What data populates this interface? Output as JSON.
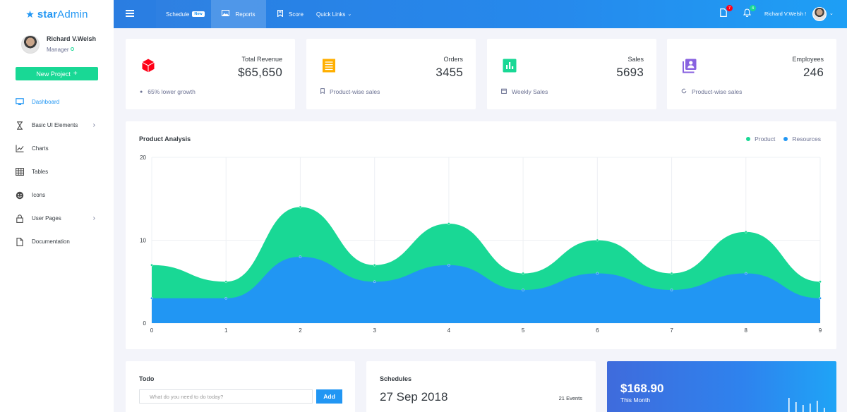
{
  "brand": {
    "name_bold": "star",
    "name_light": "Admin"
  },
  "profile": {
    "name": "Richard V.Welsh",
    "role": "Manager"
  },
  "sidebar": {
    "new_project_label": "New Project",
    "items": [
      {
        "label": "Dashboard",
        "icon": "monitor-icon",
        "active": true
      },
      {
        "label": "Basic UI Elements",
        "icon": "hourglass-icon",
        "has_submenu": true
      },
      {
        "label": "Charts",
        "icon": "chart-line-icon"
      },
      {
        "label": "Tables",
        "icon": "table-icon"
      },
      {
        "label": "Icons",
        "icon": "emoticon-icon"
      },
      {
        "label": "User Pages",
        "icon": "lock-icon",
        "has_submenu": true
      },
      {
        "label": "Documentation",
        "icon": "file-icon"
      }
    ]
  },
  "topbar": {
    "schedule_label": "Schedule",
    "schedule_badge": "New",
    "reports_label": "Reports",
    "score_label": "Score",
    "quick_links_label": "Quick Links",
    "messages_count": "7",
    "notifications_count": "4",
    "user_name": "Richard V.Welsh !"
  },
  "stats": [
    {
      "label": "Total Revenue",
      "value": "$65,650",
      "footer": "65% lower growth",
      "icon": "cube-icon",
      "color": "#ff0017"
    },
    {
      "label": "Orders",
      "value": "3455",
      "footer": "Product-wise sales",
      "icon": "receipt-icon",
      "color": "#ffaf00"
    },
    {
      "label": "Sales",
      "value": "5693",
      "footer": "Weekly Sales",
      "icon": "poll-box-icon",
      "color": "#19d895"
    },
    {
      "label": "Employees",
      "value": "246",
      "footer": "Product-wise sales",
      "icon": "account-box-icon",
      "color": "#8862e0"
    }
  ],
  "chart_title": "Product Analysis",
  "chart_data": {
    "type": "area",
    "x": [
      0,
      1,
      2,
      3,
      4,
      5,
      6,
      7,
      8,
      9
    ],
    "series": [
      {
        "name": "Product",
        "color": "#19d895",
        "values": [
          7,
          5,
          14,
          7,
          12,
          6,
          10,
          6,
          11,
          5
        ]
      },
      {
        "name": "Resources",
        "color": "#2196f3",
        "values": [
          3,
          3,
          8,
          5,
          7,
          4,
          6,
          4,
          6,
          3
        ]
      }
    ],
    "ylim": [
      0,
      20
    ],
    "yticks": [
      0,
      10,
      20
    ],
    "grid": true,
    "legend": "top-right"
  },
  "todo": {
    "title": "Todo",
    "placeholder": "What do you need to do today?",
    "add_label": "Add"
  },
  "schedules": {
    "title": "Schedules",
    "date": "27 Sep 2018",
    "events": "21 Events"
  },
  "revenue_card": {
    "amount": "$168.90",
    "label": "This Month"
  }
}
